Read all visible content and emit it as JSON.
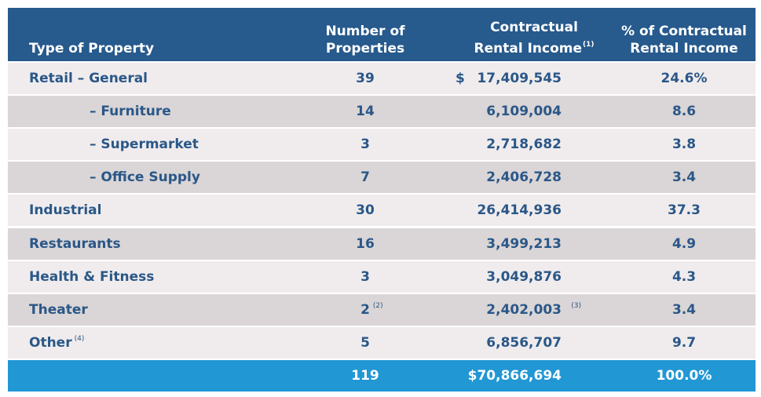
{
  "colors": {
    "header_bg": "#275a8d",
    "row_light": "#f0eced",
    "row_dark": "#dad5d6",
    "text": "#2a5788",
    "total_bg": "#2197d4"
  },
  "header": {
    "type": "Type of Property",
    "count_line1": "Number of",
    "count_line2": "Properties",
    "income_line1": "Contractual",
    "income_line2": "Rental Income",
    "income_note": "(1)",
    "pct_line1": "% of Contractual",
    "pct_line2": "Rental Income"
  },
  "rows": [
    {
      "type": "Retail – General",
      "type_note": "",
      "count": "39",
      "count_note": "",
      "currency": "$",
      "income": "17,409,545",
      "income_note": "",
      "pct": "24.6%",
      "sub": false
    },
    {
      "type": "– Furniture",
      "type_note": "",
      "count": "14",
      "count_note": "",
      "currency": "",
      "income": "6,109,004",
      "income_note": "",
      "pct": "8.6",
      "sub": true
    },
    {
      "type": "– Supermarket",
      "type_note": "",
      "count": "3",
      "count_note": "",
      "currency": "",
      "income": "2,718,682",
      "income_note": "",
      "pct": "3.8",
      "sub": true
    },
    {
      "type": "– Office Supply",
      "type_note": "",
      "count": "7",
      "count_note": "",
      "currency": "",
      "income": "2,406,728",
      "income_note": "",
      "pct": "3.4",
      "sub": true
    },
    {
      "type": "Industrial",
      "type_note": "",
      "count": "30",
      "count_note": "",
      "currency": "",
      "income": "26,414,936",
      "income_note": "",
      "pct": "37.3",
      "sub": false
    },
    {
      "type": "Restaurants",
      "type_note": "",
      "count": "16",
      "count_note": "",
      "currency": "",
      "income": "3,499,213",
      "income_note": "",
      "pct": "4.9",
      "sub": false
    },
    {
      "type": "Health & Fitness",
      "type_note": "",
      "count": "3",
      "count_note": "",
      "currency": "",
      "income": "3,049,876",
      "income_note": "",
      "pct": "4.3",
      "sub": false
    },
    {
      "type": "Theater",
      "type_note": "",
      "count": "2",
      "count_note": "(2)",
      "currency": "",
      "income": "2,402,003",
      "income_note": "(3)",
      "pct": "3.4",
      "sub": false
    },
    {
      "type": "Other",
      "type_note": "(4)",
      "count": "5",
      "count_note": "",
      "currency": "",
      "income": "6,856,707",
      "income_note": "",
      "pct": "9.7",
      "sub": false
    }
  ],
  "total": {
    "count": "119",
    "income": "$70,866,694",
    "pct": "100.0%"
  }
}
